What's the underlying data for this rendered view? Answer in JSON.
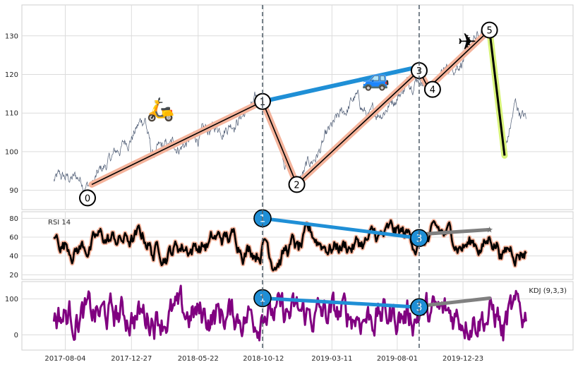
{
  "chart_data": [
    {
      "type": "line",
      "panel": "price",
      "x_range": [
        "2017-05-01",
        "2020-08-20"
      ],
      "ylim": [
        85,
        138
      ],
      "y_ticks": [
        90,
        100,
        110,
        120,
        130
      ],
      "grid": true,
      "wave_points": [
        {
          "label": "0",
          "date": "2017-10-01",
          "value": 91.5
        },
        {
          "label": "1",
          "date": "2018-10-10",
          "value": 113.0
        },
        {
          "label": "2",
          "date": "2018-12-24",
          "value": 91.5
        },
        {
          "label": "3",
          "date": "2019-09-18",
          "value": 121.0
        },
        {
          "label": "4",
          "date": "2019-10-08",
          "value": 116.5
        },
        {
          "label": "5",
          "date": "2020-02-19",
          "value": 131.5
        }
      ],
      "wave_end": {
        "date": "2020-03-23",
        "value": 99.0
      },
      "trend_line": [
        {
          "date": "2018-10-10",
          "value": 113.0
        },
        {
          "date": "2019-09-18",
          "value": 122.0
        }
      ],
      "icons": [
        {
          "name": "scooter-icon",
          "glyph": "🛵",
          "date": "2018-03-01",
          "value": 111.0
        },
        {
          "name": "car-icon",
          "glyph": "🚙",
          "date": "2019-06-15",
          "value": 119.0
        },
        {
          "name": "airplane-icon",
          "glyph": "✈",
          "date": "2020-01-01",
          "value": 128.5
        }
      ],
      "vlines": [
        "2018-10-10",
        "2019-09-18"
      ],
      "colors": {
        "price": "#4c5a73",
        "wave": "#f4b39b",
        "trend": "#1f8fd6",
        "drop": "#d8f37a"
      }
    },
    {
      "type": "line",
      "panel": "rsi",
      "title": "RSI 14",
      "ylim": [
        15,
        87
      ],
      "y_ticks": [
        20,
        40,
        60,
        80
      ],
      "grid": true,
      "markers": [
        {
          "label": "1",
          "date": "2018-10-10",
          "value": 80
        },
        {
          "label": "3",
          "date": "2019-09-18",
          "value": 59
        }
      ],
      "trend_line": [
        {
          "date": "2019-09-18",
          "value": 63
        },
        {
          "date": "2020-02-19",
          "value": 68
        }
      ],
      "colors": {
        "line": "#000000",
        "halo": "#f4b39b",
        "divergence": "#1f8fd6",
        "trend": "#808080"
      }
    },
    {
      "type": "line",
      "panel": "kdj",
      "title": "KDJ (9,3,3)",
      "ylim": [
        -42,
        148
      ],
      "y_ticks": [
        0,
        100
      ],
      "grid": true,
      "markers": [
        {
          "label": "1",
          "date": "2018-10-10",
          "value": 102
        },
        {
          "label": "3",
          "date": "2019-09-18",
          "value": 77
        }
      ],
      "trend_line": [
        {
          "date": "2019-09-18",
          "value": 80
        },
        {
          "date": "2020-02-19",
          "value": 102
        }
      ],
      "colors": {
        "line": "#800080",
        "shadow": "#6b6b6b",
        "divergence": "#1f8fd6",
        "trend": "#808080"
      }
    }
  ],
  "x_ticks": [
    "2017-08-04",
    "2017-12-27",
    "2018-05-22",
    "2018-10-12",
    "2019-03-11",
    "2019-08-01",
    "2019-12-23"
  ]
}
